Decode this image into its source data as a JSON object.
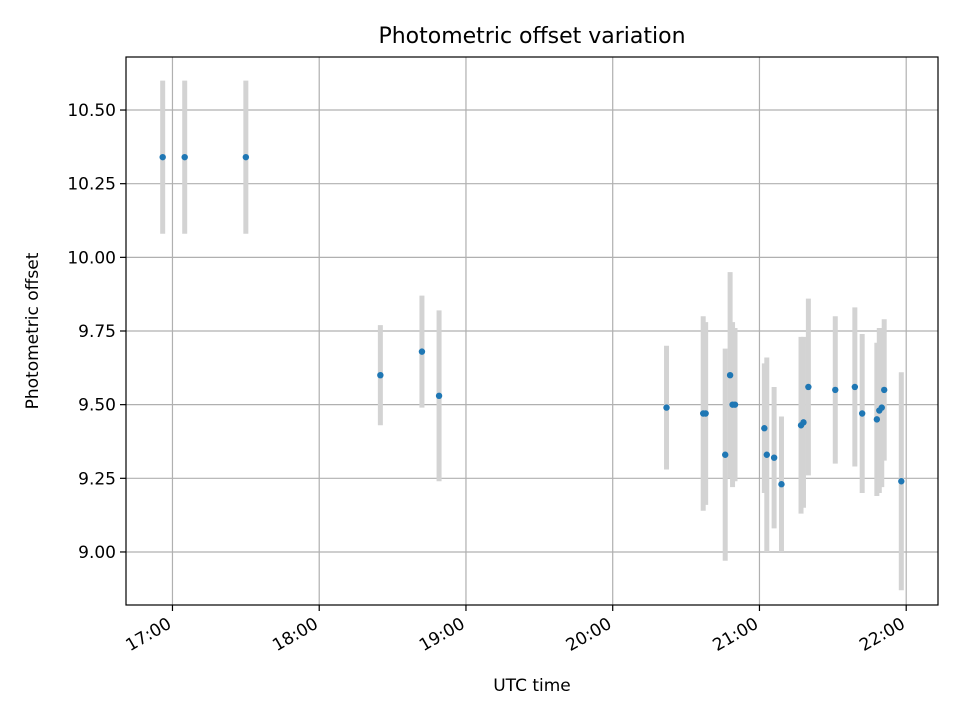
{
  "chart_data": {
    "type": "scatter",
    "title": "Photometric offset variation",
    "xlabel": "UTC time",
    "ylabel": "Photometric offset",
    "x_axis_type": "time",
    "xlim": [
      "16:41",
      "22:13"
    ],
    "ylim": [
      8.82,
      10.68
    ],
    "x_ticks": [
      "17:00",
      "18:00",
      "19:00",
      "20:00",
      "21:00",
      "22:00"
    ],
    "y_ticks": [
      "9.00",
      "9.25",
      "9.50",
      "9.75",
      "10.00",
      "10.25",
      "10.50"
    ],
    "grid": true,
    "legend": "none",
    "marker_color": "#1f77b4",
    "error_bar_color": "#d3d3d3",
    "points": [
      {
        "time": "16:56",
        "value": 10.34,
        "error": 0.26
      },
      {
        "time": "17:05",
        "value": 10.34,
        "error": 0.26
      },
      {
        "time": "17:30",
        "value": 10.34,
        "error": 0.26
      },
      {
        "time": "18:25",
        "value": 9.6,
        "error": 0.17
      },
      {
        "time": "18:42",
        "value": 9.68,
        "error": 0.19
      },
      {
        "time": "18:49",
        "value": 9.53,
        "error": 0.29
      },
      {
        "time": "20:22",
        "value": 9.49,
        "error": 0.21
      },
      {
        "time": "20:37",
        "value": 9.47,
        "error": 0.33
      },
      {
        "time": "20:38",
        "value": 9.47,
        "error": 0.31
      },
      {
        "time": "20:46",
        "value": 9.33,
        "error": 0.36
      },
      {
        "time": "20:48",
        "value": 9.6,
        "error": 0.35
      },
      {
        "time": "20:49",
        "value": 9.5,
        "error": 0.28
      },
      {
        "time": "20:50",
        "value": 9.5,
        "error": 0.26
      },
      {
        "time": "21:02",
        "value": 9.42,
        "error": 0.22
      },
      {
        "time": "21:03",
        "value": 9.33,
        "error": 0.33
      },
      {
        "time": "21:06",
        "value": 9.32,
        "error": 0.24
      },
      {
        "time": "21:09",
        "value": 9.23,
        "error": 0.23
      },
      {
        "time": "21:17",
        "value": 9.43,
        "error": 0.3
      },
      {
        "time": "21:18",
        "value": 9.44,
        "error": 0.29
      },
      {
        "time": "21:20",
        "value": 9.56,
        "error": 0.3
      },
      {
        "time": "21:31",
        "value": 9.55,
        "error": 0.25
      },
      {
        "time": "21:39",
        "value": 9.56,
        "error": 0.27
      },
      {
        "time": "21:42",
        "value": 9.47,
        "error": 0.27
      },
      {
        "time": "21:48",
        "value": 9.45,
        "error": 0.26
      },
      {
        "time": "21:49",
        "value": 9.48,
        "error": 0.28
      },
      {
        "time": "21:50",
        "value": 9.49,
        "error": 0.27
      },
      {
        "time": "21:51",
        "value": 9.55,
        "error": 0.24
      },
      {
        "time": "21:58",
        "value": 9.24,
        "error": 0.37
      }
    ]
  }
}
